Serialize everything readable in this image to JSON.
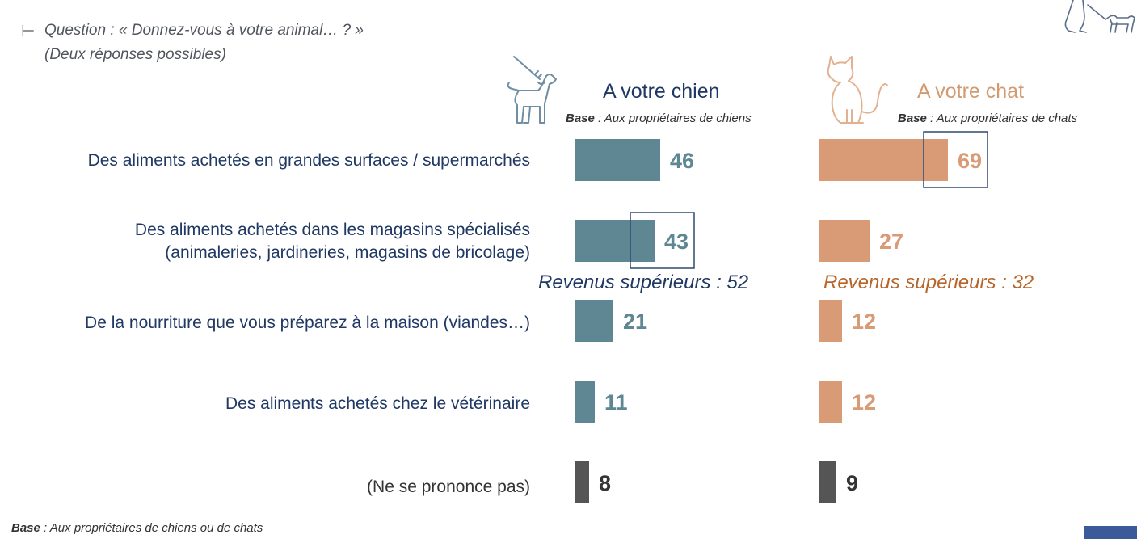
{
  "header": {
    "marker": "⊢",
    "question": "Question : « Donnez-vous à votre animal… ? »",
    "question_sub": "(Deux réponses possibles)"
  },
  "columns": {
    "dog": {
      "title": "A votre chien",
      "base_bold": "Base",
      "base_text": " : Aux propriétaires de chiens",
      "note": "Revenus supérieurs : 52",
      "icon": "dog-on-leash-icon"
    },
    "cat": {
      "title": "A votre chat",
      "base_bold": "Base",
      "base_text": " : Aux propriétaires de chats",
      "note": "Revenus supérieurs : 32",
      "icon": "sitting-cat-icon"
    }
  },
  "corner_icon": "person-walking-dog-icon",
  "footer": {
    "base_bold": "Base",
    "base_text": " : Aux propriétaires de chiens ou de chats"
  },
  "chart_data": {
    "type": "bar",
    "orientation": "horizontal",
    "categories": [
      [
        "Des aliments achetés en grandes surfaces / supermarchés"
      ],
      [
        "Des aliments achetés dans les magasins spécialisés",
        "(animaleries, jardineries, magasins de bricolage)"
      ],
      [
        "De la nourriture que vous préparez à la maison (viandes…)"
      ],
      [
        "Des aliments achetés chez le vétérinaire"
      ],
      [
        "(Ne se prononce pas)"
      ]
    ],
    "series": [
      {
        "name": "A votre chien",
        "values": [
          46,
          43,
          21,
          11,
          8
        ],
        "color": "#5e8693",
        "label_color": "#5e8693",
        "highlight_index": 1
      },
      {
        "name": "A votre chat",
        "values": [
          69,
          27,
          12,
          12,
          9
        ],
        "color": "#d89b75",
        "label_color": "#d89b75",
        "highlight_index": 0
      }
    ],
    "neutral_color": "#555555",
    "neutral_label_color": "#333333",
    "highlight_border_color": "#2e4a6e"
  },
  "icon_colors": {
    "dog": "#6f8ea3",
    "cat": "#e3b18f",
    "corner": "#5a6e88"
  }
}
